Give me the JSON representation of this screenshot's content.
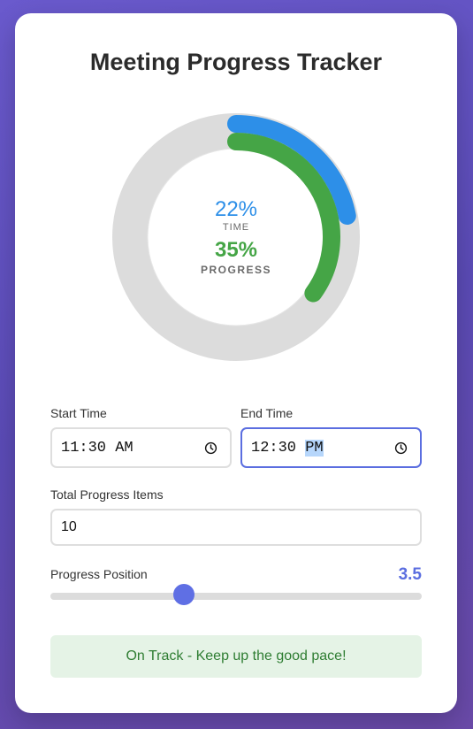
{
  "title": "Meeting Progress Tracker",
  "tracker": {
    "time_percent": "22%",
    "time_label": "TIME",
    "progress_percent": "35%",
    "progress_label": "PROGRESS",
    "time_fraction": 0.22,
    "progress_fraction": 0.35
  },
  "fields": {
    "start_time_label": "Start Time",
    "start_time_value": "11:30 AM",
    "end_time_label": "End Time",
    "end_time_hour": "12:30",
    "end_time_period": "PM",
    "total_items_label": "Total Progress Items",
    "total_items_value": "10",
    "position_label": "Progress Position",
    "position_value": "3.5",
    "position_min": 0,
    "position_max": 10
  },
  "status_text": "On Track - Keep up the good pace!",
  "colors": {
    "time": "#2d8fe8",
    "progress": "#45a546",
    "ring_bg": "#dcdcdc",
    "accent": "#5b6ee0"
  },
  "icons": [
    "clock-icon"
  ]
}
